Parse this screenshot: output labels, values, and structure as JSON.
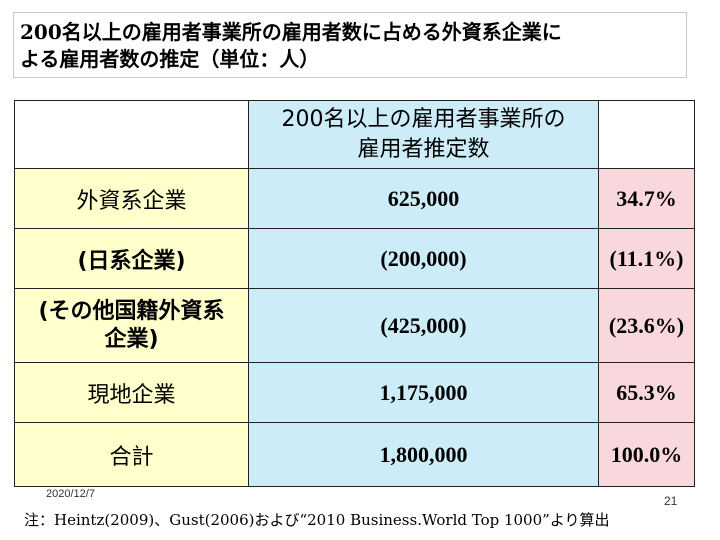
{
  "title": {
    "line1": "200名以上の雇用者事業所の雇用者数に占める外資系企業に",
    "line2": "よる雇用者数の推定（単位：人）"
  },
  "table": {
    "header": {
      "line1": "200名以上の雇用者事業所の",
      "line2": "雇用者推定数"
    },
    "rows": [
      {
        "label_line1": "外資系企業",
        "label_line2": "",
        "value": "625,000",
        "percent": "34.7%"
      },
      {
        "label_line1": "(日系企業)",
        "label_line2": "",
        "value": "(200,000)",
        "percent": "(11.1%)"
      },
      {
        "label_line1": "(その他国籍外資系",
        "label_line2": "企業)",
        "value": "(425,000)",
        "percent": "(23.6%)"
      },
      {
        "label_line1": "現地企業",
        "label_line2": "",
        "value": "1,175,000",
        "percent": "65.3%"
      },
      {
        "label_line1": "合計",
        "label_line2": "",
        "value": "1,800,000",
        "percent": "100.0%"
      }
    ]
  },
  "footer": {
    "date": "2020/12/7",
    "page_number": "21",
    "note": "注：Heintz(2009)、Gust(2006)および“2010 Business.World Top 1000”より算出"
  },
  "colors": {
    "label_bg": "#ffffcc",
    "value_bg": "#ccecf8",
    "percent_bg": "#f8d8dc"
  }
}
